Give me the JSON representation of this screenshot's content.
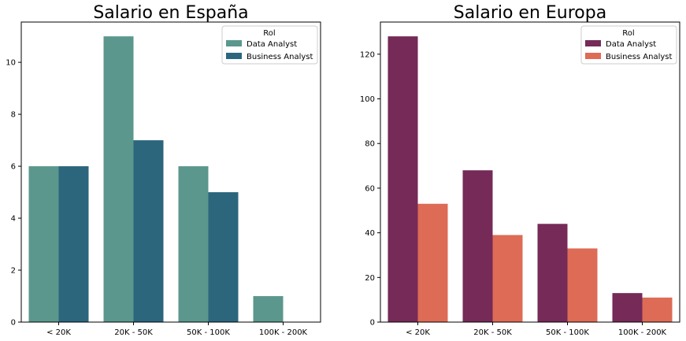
{
  "chart_data": [
    {
      "type": "bar",
      "title": "Salario en España",
      "categories": [
        "< 20K",
        "20K - 50K",
        "50K - 100K",
        "100K - 200K"
      ],
      "series": [
        {
          "name": "Data Analyst",
          "color": "#5b978c",
          "values": [
            6,
            11,
            6,
            1
          ]
        },
        {
          "name": "Business Analyst",
          "color": "#2b667d",
          "values": [
            6,
            7,
            5,
            0
          ]
        }
      ],
      "legend_title": "Rol",
      "legend_position": "top-right",
      "yticks": [
        0,
        2,
        4,
        6,
        8,
        10
      ],
      "ylim": [
        0,
        11.55
      ],
      "xlabel": "",
      "ylabel": "",
      "grid": false
    },
    {
      "type": "bar",
      "title": "Salario en Europa",
      "categories": [
        "< 20K",
        "20K - 50K",
        "50K - 100K",
        "100K - 200K"
      ],
      "series": [
        {
          "name": "Data Analyst",
          "color": "#752a58",
          "values": [
            128,
            68,
            44,
            13
          ]
        },
        {
          "name": "Business Analyst",
          "color": "#dd6b55",
          "values": [
            53,
            39,
            33,
            11
          ]
        }
      ],
      "legend_title": "Rol",
      "legend_position": "top-right",
      "yticks": [
        0,
        20,
        40,
        60,
        80,
        100,
        120
      ],
      "ylim": [
        0,
        134.4
      ],
      "xlabel": "",
      "ylabel": "",
      "grid": false
    }
  ]
}
